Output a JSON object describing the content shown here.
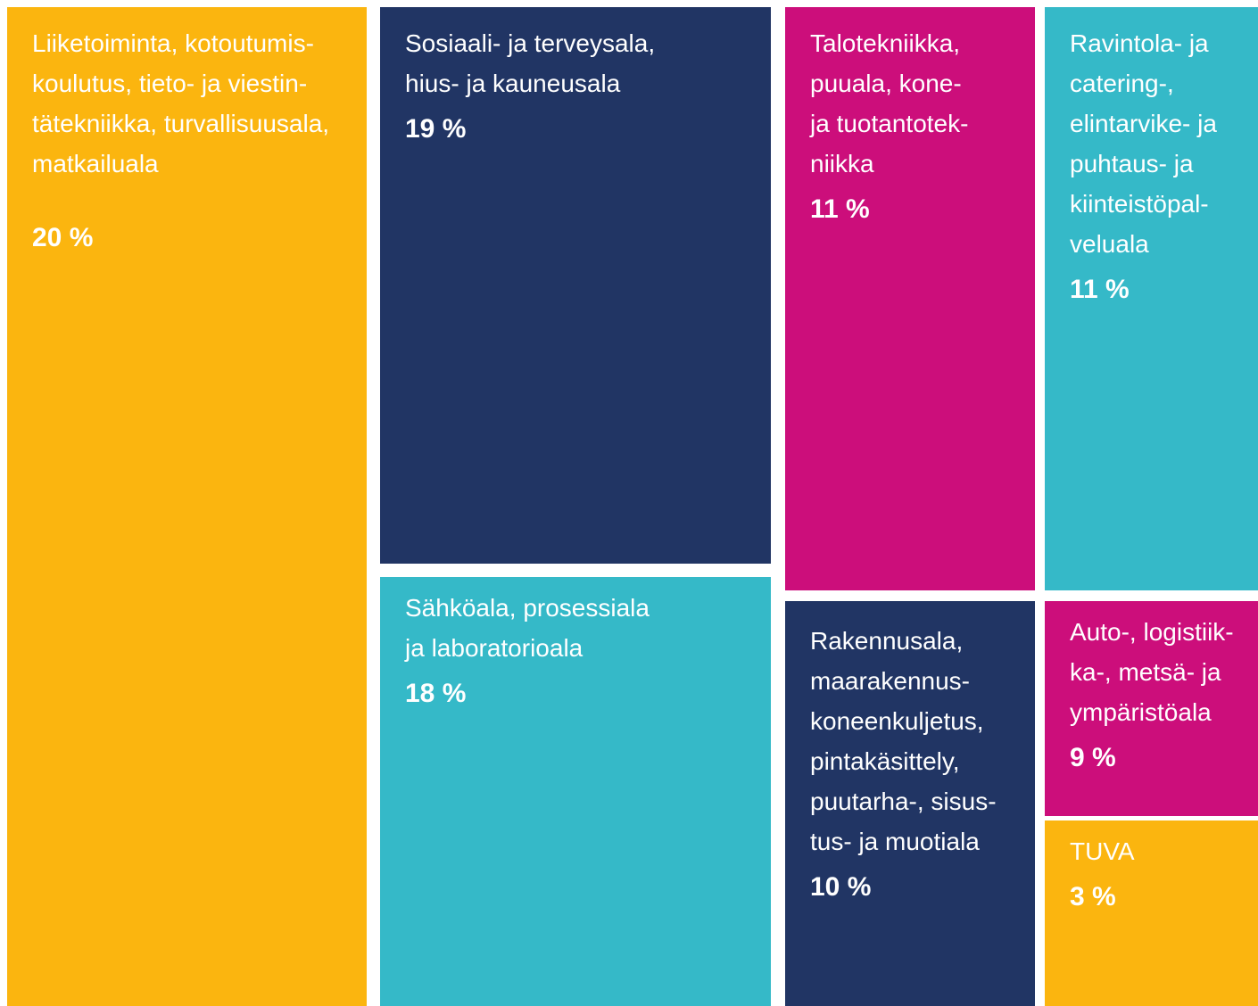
{
  "chart_data": {
    "type": "treemap",
    "categories": [
      "Liiketoiminta, kotoutumis-\nkoulutus, tieto- ja viestin-\ntätekniikka, turvallisuusala,\nmatkailuala",
      "Sosiaali- ja terveysala,\nhius- ja kauneusala",
      "Sähköala, prosessiala\nja laboratorioala",
      "Talotekniikka,\npuuala, kone-\nja tuotantotek-\nniikka",
      "Ravintola- ja\ncatering-,\nelintarvike- ja\npuhtaus- ja\nkiinteistöpal-\nveluala",
      "Rakennusala,\nmaarakennus-\nkoneenkuljetus,\npintakäsittely,\npuutarha-, sisus-\ntus- ja muotiala",
      "Auto-, logistiik-\nka-, metsä- ja\nympäristöala",
      "TUVA"
    ],
    "values": [
      20,
      19,
      18,
      11,
      11,
      10,
      9,
      3
    ],
    "value_labels": [
      "20 %",
      "19 %",
      "18 %",
      "11 %",
      "11 %",
      "10 %",
      "9 %",
      "3 %"
    ],
    "colors": [
      "#fbb50f",
      "#213564",
      "#35b9c8",
      "#cc0e7b",
      "#35b9c8",
      "#213564",
      "#cc0e7b",
      "#fbb50f"
    ]
  }
}
